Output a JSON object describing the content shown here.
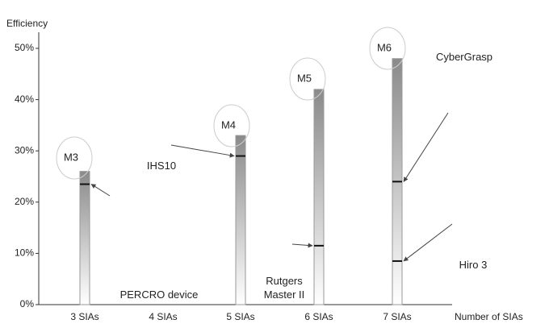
{
  "chart_data": {
    "type": "bar",
    "y_label": "Efficiency",
    "x_label": "Number of SIAs",
    "categories": [
      "3 SIAs",
      "4 SIAs",
      "5 SIAs",
      "6 SIAs",
      "7 SIAs"
    ],
    "values": [
      26,
      null,
      33,
      42,
      48
    ],
    "bar_labels": [
      "M3",
      null,
      "M4",
      "M5",
      "M6"
    ],
    "color": "#8a8a8a",
    "ylim": [
      0,
      50
    ],
    "yticks": [
      {
        "value": 0,
        "label": "0%"
      },
      {
        "value": 10,
        "label": "10%"
      },
      {
        "value": 20,
        "label": "20%"
      },
      {
        "value": 30,
        "label": "30%"
      },
      {
        "value": 40,
        "label": "40%"
      },
      {
        "value": 50,
        "label": "50%"
      }
    ],
    "grid": false,
    "markers": [
      {
        "label": [
          "PERCRO device"
        ],
        "category": "3 SIAs",
        "value": 23.5
      },
      {
        "label": [
          "IHS10"
        ],
        "category": "5 SIAs",
        "value": 29
      },
      {
        "label": [
          "Rutgers",
          "Master II"
        ],
        "category": "6 SIAs",
        "value": 11.5
      },
      {
        "label": [
          "CyberGrasp"
        ],
        "category": "7 SIAs",
        "value": 24
      },
      {
        "label": [
          "Hiro 3"
        ],
        "category": "7 SIAs",
        "value": 8.5
      }
    ]
  }
}
